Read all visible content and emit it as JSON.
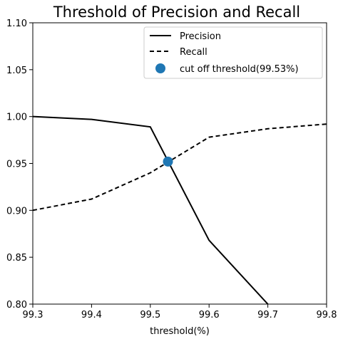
{
  "chart_data": {
    "type": "line",
    "title": "Threshold of Precision and Recall",
    "xlabel": "threshold(%)",
    "ylabel": "",
    "xlim": [
      99.3,
      99.8
    ],
    "ylim": [
      0.8,
      1.1
    ],
    "xticks": [
      "99.3",
      "99.4",
      "99.5",
      "99.6",
      "99.7",
      "99.8"
    ],
    "yticks": [
      "0.80",
      "0.85",
      "0.90",
      "0.95",
      "1.00",
      "1.05",
      "1.10"
    ],
    "grid": false,
    "legend_position": "top-right",
    "series": [
      {
        "name": "Precision",
        "style": "solid",
        "color": "#000000",
        "x": [
          99.3,
          99.4,
          99.5,
          99.6,
          99.7
        ],
        "y": [
          1.0,
          0.997,
          0.989,
          0.868,
          0.8
        ]
      },
      {
        "name": "Recall",
        "style": "dashed",
        "color": "#000000",
        "x": [
          99.3,
          99.4,
          99.5,
          99.6,
          99.7,
          99.8
        ],
        "y": [
          0.9,
          0.912,
          0.94,
          0.978,
          0.987,
          0.992
        ]
      }
    ],
    "marker": {
      "name": "cut off threshold(99.53%)",
      "x": 99.53,
      "y": 0.952,
      "color": "#1f77b4"
    }
  }
}
